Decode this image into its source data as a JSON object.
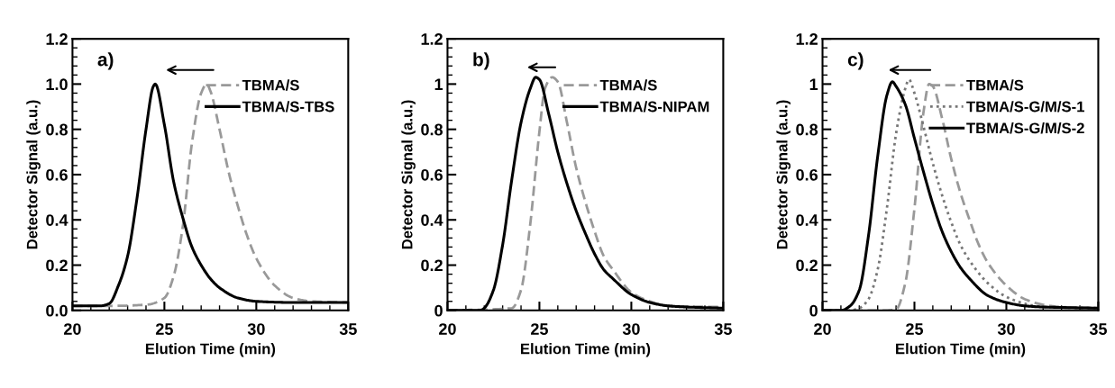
{
  "chart_data": [
    {
      "type": "line",
      "annotations": [
        "a)"
      ],
      "xlabel": "Elution Time (min)",
      "ylabel": "Detector Signal (a.u.)",
      "xlim": [
        20,
        35
      ],
      "xticks": [
        20,
        25,
        30,
        35
      ],
      "ylim": [
        0,
        1.2
      ],
      "yticks": [
        {
          "value": 0,
          "label": "0.0"
        },
        0.2,
        0.4,
        0.6,
        0.8,
        {
          "value": 1,
          "label": "1.0"
        },
        1.2
      ],
      "legend": "top right",
      "grid": false,
      "series": [
        {
          "name": "TBMA/S",
          "color": "#999999",
          "line_style": "dashed",
          "x": [
            20,
            22,
            24,
            25,
            25.5,
            26,
            26.5,
            27,
            27.3,
            27.5,
            28,
            28.5,
            29,
            29.5,
            30,
            31,
            32,
            33,
            35
          ],
          "values": [
            0.02,
            0.02,
            0.025,
            0.055,
            0.15,
            0.37,
            0.74,
            0.96,
            1.0,
            0.97,
            0.8,
            0.61,
            0.46,
            0.33,
            0.23,
            0.11,
            0.055,
            0.04,
            0.035
          ]
        },
        {
          "name": "TBMA/S-TBS",
          "color": "#000000",
          "line_style": "solid",
          "x": [
            20,
            21.5,
            22,
            22.5,
            23,
            23.5,
            24,
            24.4,
            24.5,
            25,
            25.5,
            26,
            26.5,
            27,
            27.5,
            28,
            29,
            30,
            32,
            35
          ],
          "values": [
            0.02,
            0.02,
            0.03,
            0.11,
            0.24,
            0.49,
            0.8,
            0.99,
            1.0,
            0.82,
            0.57,
            0.41,
            0.28,
            0.2,
            0.14,
            0.1,
            0.055,
            0.04,
            0.035,
            0.035
          ]
        }
      ]
    },
    {
      "type": "line",
      "annotations": [
        "b)"
      ],
      "xlabel": "Elution Time (min)",
      "ylabel": "Detector Signal (a.u.)",
      "xlim": [
        20,
        35
      ],
      "xticks": [
        20,
        25,
        30,
        35
      ],
      "ylim": [
        0,
        1.2
      ],
      "yticks": [
        0,
        0.2,
        0.4,
        0.6,
        0.8,
        1,
        1.2
      ],
      "legend": "top right",
      "grid": false,
      "series": [
        {
          "name": "TBMA/S",
          "color": "#999999",
          "line_style": "dashed",
          "x": [
            20,
            23.5,
            24,
            24.5,
            25,
            25.3,
            25.7,
            26,
            26.5,
            27,
            27.5,
            28,
            28.5,
            29,
            30,
            31,
            32,
            35
          ],
          "values": [
            0,
            0.01,
            0.09,
            0.38,
            0.79,
            0.98,
            1.03,
            1.01,
            0.83,
            0.63,
            0.48,
            0.35,
            0.24,
            0.18,
            0.08,
            0.04,
            0.02,
            0.015
          ]
        },
        {
          "name": "TBMA/S-NIPAM",
          "color": "#000000",
          "line_style": "solid",
          "x": [
            20,
            21.8,
            22,
            22.5,
            23,
            23.5,
            24,
            24.5,
            24.8,
            25,
            25.5,
            26,
            26.5,
            27,
            27.5,
            28,
            28.5,
            29,
            30,
            31,
            32,
            33,
            35
          ],
          "values": [
            0,
            0,
            0.01,
            0.09,
            0.29,
            0.58,
            0.83,
            0.98,
            1.03,
            1.02,
            0.87,
            0.7,
            0.56,
            0.44,
            0.34,
            0.25,
            0.18,
            0.14,
            0.07,
            0.035,
            0.02,
            0.015,
            0.01
          ]
        }
      ]
    },
    {
      "type": "line",
      "annotations": [
        "c)"
      ],
      "xlabel": "Elution Time (min)",
      "ylabel": "Detector Signal (a.u.)",
      "xlim": [
        20,
        35
      ],
      "xticks": [
        20,
        25,
        30,
        35
      ],
      "ylim": [
        0,
        1.2
      ],
      "yticks": [
        0,
        0.2,
        0.4,
        0.6,
        0.8,
        1,
        1.2
      ],
      "legend": "top right",
      "grid": false,
      "series": [
        {
          "name": "TBMA/S",
          "color": "#999999",
          "line_style": "dashed",
          "x": [
            20,
            23.5,
            24,
            24.5,
            25,
            25.5,
            25.8,
            26,
            26.5,
            27,
            27.5,
            28,
            28.5,
            29,
            30,
            31,
            32,
            33,
            35
          ],
          "values": [
            0,
            0,
            0.005,
            0.12,
            0.45,
            0.88,
            1.0,
            0.99,
            0.85,
            0.67,
            0.52,
            0.4,
            0.29,
            0.21,
            0.11,
            0.05,
            0.025,
            0.015,
            0.01
          ]
        },
        {
          "name": "TBMA/S-G/M/S-1",
          "color": "#777777",
          "line_style": "dotted",
          "x": [
            20,
            21.5,
            22,
            22.5,
            23,
            23.5,
            24,
            24.5,
            24.7,
            25,
            25.5,
            26,
            26.5,
            27,
            27.5,
            28,
            29,
            30,
            31,
            32,
            35
          ],
          "values": [
            0,
            0,
            0.01,
            0.05,
            0.18,
            0.45,
            0.78,
            0.98,
            1.02,
            0.96,
            0.81,
            0.65,
            0.51,
            0.39,
            0.29,
            0.22,
            0.12,
            0.06,
            0.03,
            0.015,
            0.01
          ]
        },
        {
          "name": "TBMA/S-G/M/S-2",
          "color": "#000000",
          "line_style": "solid",
          "x": [
            20,
            21,
            21.5,
            22,
            22.5,
            23,
            23.5,
            23.8,
            24,
            24.5,
            25,
            25.5,
            26,
            26.5,
            27,
            27.5,
            28,
            29,
            30,
            31,
            32,
            35
          ],
          "values": [
            0,
            0,
            0.02,
            0.09,
            0.33,
            0.68,
            0.95,
            1.01,
            0.99,
            0.91,
            0.76,
            0.61,
            0.47,
            0.35,
            0.26,
            0.19,
            0.14,
            0.065,
            0.035,
            0.02,
            0.015,
            0.01
          ]
        }
      ]
    }
  ]
}
